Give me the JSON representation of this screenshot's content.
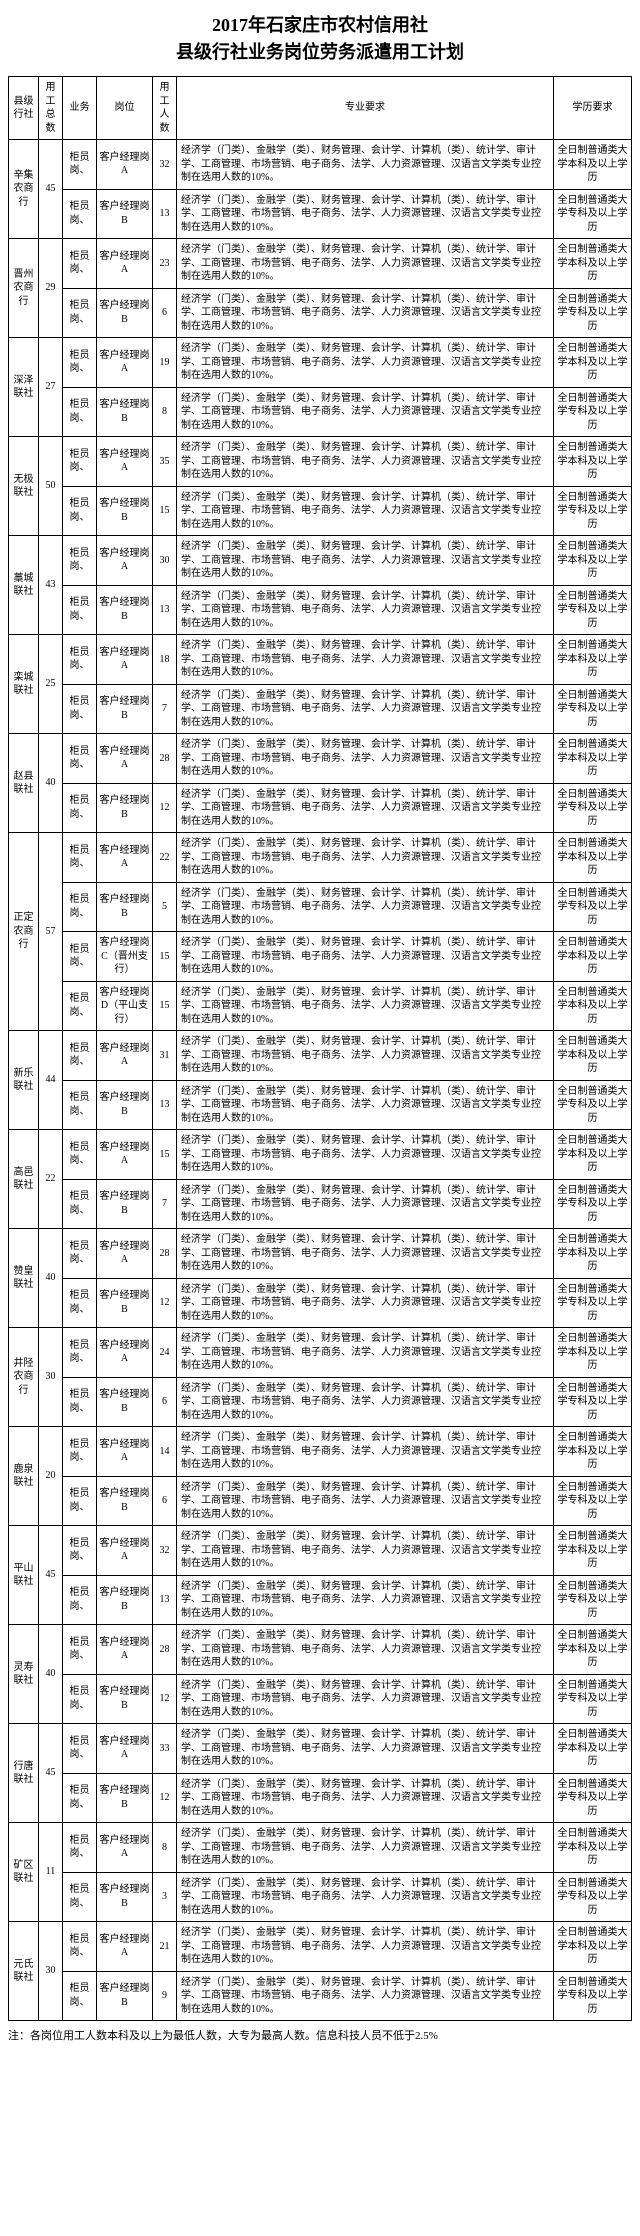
{
  "title_line1": "2017年石家庄市农村信用社",
  "title_line2": "县级行社业务岗位劳务派遣用工计划",
  "headers": {
    "branch": "县级行社",
    "total": "用工总数",
    "biz": "业务",
    "pos": "岗位",
    "cnt": "用工人数",
    "major": "专业要求",
    "edu": "学历要求"
  },
  "major_text": "经济学（门类）、金融学（类）、财务管理、会计学、计算机（类）、统计学、审计学、工商管理、市场营销、电子商务、法学、人力资源管理、汉语言文学类专业控制在选用人数的10%。",
  "edu_bk": "全日制普通类大学本科及以上学历",
  "edu_zk": "全日制普通类大学专科及以上学历",
  "footnote": "注：各岗位用工人数本科及以上为最低人数，大专为最高人数。信息科技人员不低于2.5%",
  "branches": [
    {
      "name": "辛集农商行",
      "total": 45,
      "rows": [
        {
          "biz": "柜员岗、",
          "pos": "客户经理岗A",
          "cnt": 32,
          "edu": "bk"
        },
        {
          "biz": "柜员岗、",
          "pos": "客户经理岗B",
          "cnt": 13,
          "edu": "zk"
        }
      ]
    },
    {
      "name": "晋州农商行",
      "total": 29,
      "rows": [
        {
          "biz": "柜员岗、",
          "pos": "客户经理岗A",
          "cnt": 23,
          "edu": "bk"
        },
        {
          "biz": "柜员岗、",
          "pos": "客户经理岗B",
          "cnt": 6,
          "edu": "zk"
        }
      ]
    },
    {
      "name": "深泽联社",
      "total": 27,
      "rows": [
        {
          "biz": "柜员岗、",
          "pos": "客户经理岗A",
          "cnt": 19,
          "edu": "bk"
        },
        {
          "biz": "柜员岗、",
          "pos": "客户经理岗B",
          "cnt": 8,
          "edu": "zk"
        }
      ]
    },
    {
      "name": "无极联社",
      "total": 50,
      "rows": [
        {
          "biz": "柜员岗、",
          "pos": "客户经理岗A",
          "cnt": 35,
          "edu": "bk"
        },
        {
          "biz": "柜员岗、",
          "pos": "客户经理岗B",
          "cnt": 15,
          "edu": "zk"
        }
      ]
    },
    {
      "name": "藁城联社",
      "total": 43,
      "rows": [
        {
          "biz": "柜员岗、",
          "pos": "客户经理岗A",
          "cnt": 30,
          "edu": "bk"
        },
        {
          "biz": "柜员岗、",
          "pos": "客户经理岗B",
          "cnt": 13,
          "edu": "zk"
        }
      ]
    },
    {
      "name": "栾城联社",
      "total": 25,
      "rows": [
        {
          "biz": "柜员岗、",
          "pos": "客户经理岗A",
          "cnt": 18,
          "edu": "bk"
        },
        {
          "biz": "柜员岗、",
          "pos": "客户经理岗B",
          "cnt": 7,
          "edu": "zk"
        }
      ]
    },
    {
      "name": "赵县联社",
      "total": 40,
      "rows": [
        {
          "biz": "柜员岗、",
          "pos": "客户经理岗A",
          "cnt": 28,
          "edu": "bk"
        },
        {
          "biz": "柜员岗、",
          "pos": "客户经理岗B",
          "cnt": 12,
          "edu": "zk"
        }
      ]
    },
    {
      "name": "正定农商行",
      "total": 57,
      "rows": [
        {
          "biz": "柜员岗、",
          "pos": "客户经理岗A",
          "cnt": 22,
          "edu": "bk"
        },
        {
          "biz": "柜员岗、",
          "pos": "客户经理岗B",
          "cnt": 5,
          "edu": "zk"
        },
        {
          "biz": "柜员岗、",
          "pos": "客户经理岗C（晋州支行）",
          "cnt": 15,
          "edu": "bk"
        },
        {
          "biz": "柜员岗、",
          "pos": "客户经理岗D（平山支行）",
          "cnt": 15,
          "edu": "bk"
        }
      ]
    },
    {
      "name": "新乐联社",
      "total": 44,
      "rows": [
        {
          "biz": "柜员岗、",
          "pos": "客户经理岗A",
          "cnt": 31,
          "edu": "bk"
        },
        {
          "biz": "柜员岗、",
          "pos": "客户经理岗B",
          "cnt": 13,
          "edu": "zk"
        }
      ]
    },
    {
      "name": "高邑联社",
      "total": 22,
      "rows": [
        {
          "biz": "柜员岗、",
          "pos": "客户经理岗A",
          "cnt": 15,
          "edu": "bk"
        },
        {
          "biz": "柜员岗、",
          "pos": "客户经理岗B",
          "cnt": 7,
          "edu": "zk"
        }
      ]
    },
    {
      "name": "赞皇联社",
      "total": 40,
      "rows": [
        {
          "biz": "柜员岗、",
          "pos": "客户经理岗A",
          "cnt": 28,
          "edu": "bk"
        },
        {
          "biz": "柜员岗、",
          "pos": "客户经理岗B",
          "cnt": 12,
          "edu": "zk"
        }
      ]
    },
    {
      "name": "井陉农商行",
      "total": 30,
      "rows": [
        {
          "biz": "柜员岗、",
          "pos": "客户经理岗A",
          "cnt": 24,
          "edu": "bk"
        },
        {
          "biz": "柜员岗、",
          "pos": "客户经理岗B",
          "cnt": 6,
          "edu": "zk"
        }
      ]
    },
    {
      "name": "鹿泉联社",
      "total": 20,
      "rows": [
        {
          "biz": "柜员岗、",
          "pos": "客户经理岗A",
          "cnt": 14,
          "edu": "bk"
        },
        {
          "biz": "柜员岗、",
          "pos": "客户经理岗B",
          "cnt": 6,
          "edu": "zk"
        }
      ]
    },
    {
      "name": "平山联社",
      "total": 45,
      "rows": [
        {
          "biz": "柜员岗、",
          "pos": "客户经理岗A",
          "cnt": 32,
          "edu": "bk"
        },
        {
          "biz": "柜员岗、",
          "pos": "客户经理岗B",
          "cnt": 13,
          "edu": "zk"
        }
      ]
    },
    {
      "name": "灵寿联社",
      "total": 40,
      "rows": [
        {
          "biz": "柜员岗、",
          "pos": "客户经理岗A",
          "cnt": 28,
          "edu": "bk"
        },
        {
          "biz": "柜员岗、",
          "pos": "客户经理岗B",
          "cnt": 12,
          "edu": "zk"
        }
      ]
    },
    {
      "name": "行唐联社",
      "total": 45,
      "rows": [
        {
          "biz": "柜员岗、",
          "pos": "客户经理岗A",
          "cnt": 33,
          "edu": "bk"
        },
        {
          "biz": "柜员岗、",
          "pos": "客户经理岗B",
          "cnt": 12,
          "edu": "zk"
        }
      ]
    },
    {
      "name": "矿区联社",
      "total": 11,
      "rows": [
        {
          "biz": "柜员岗、",
          "pos": "客户经理岗A",
          "cnt": 8,
          "edu": "bk"
        },
        {
          "biz": "柜员岗、",
          "pos": "客户经理岗B",
          "cnt": 3,
          "edu": "zk"
        }
      ]
    },
    {
      "name": "元氏联社",
      "total": 30,
      "rows": [
        {
          "biz": "柜员岗、",
          "pos": "客户经理岗A",
          "cnt": 21,
          "edu": "bk"
        },
        {
          "biz": "柜员岗、",
          "pos": "客户经理岗B",
          "cnt": 9,
          "edu": "zk"
        }
      ]
    }
  ]
}
